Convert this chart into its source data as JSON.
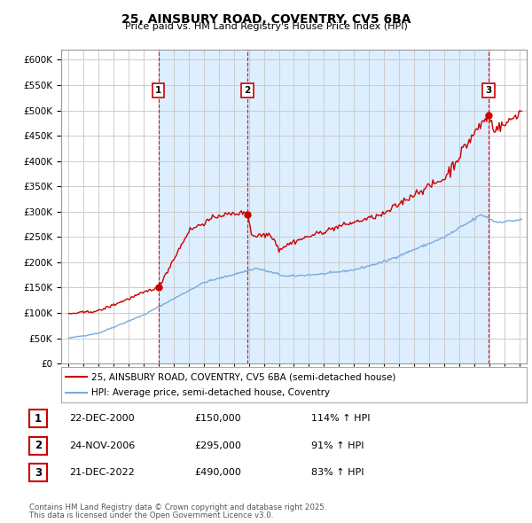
{
  "title": "25, AINSBURY ROAD, COVENTRY, CV5 6BA",
  "subtitle": "Price paid vs. HM Land Registry's House Price Index (HPI)",
  "legend_line1": "25, AINSBURY ROAD, COVENTRY, CV5 6BA (semi-detached house)",
  "legend_line2": "HPI: Average price, semi-detached house, Coventry",
  "footer1": "Contains HM Land Registry data © Crown copyright and database right 2025.",
  "footer2": "This data is licensed under the Open Government Licence v3.0.",
  "sale_points": [
    {
      "label": "1",
      "date": "22-DEC-2000",
      "price": 150000,
      "hpi_pct": "114%",
      "x": 2000.97
    },
    {
      "label": "2",
      "date": "24-NOV-2006",
      "price": 295000,
      "hpi_pct": "91%",
      "x": 2006.9
    },
    {
      "label": "3",
      "date": "21-DEC-2022",
      "price": 490000,
      "hpi_pct": "83%",
      "x": 2022.97
    }
  ],
  "vline_color": "#cc0000",
  "hpi_color": "#7aaadd",
  "property_color": "#cc0000",
  "shade_color": "#ddeeff",
  "ylim": [
    0,
    620000
  ],
  "xlim_start": 1994.5,
  "xlim_end": 2025.5,
  "background_color": "#ffffff",
  "grid_color": "#cccccc",
  "table_border_color": "#cc0000"
}
